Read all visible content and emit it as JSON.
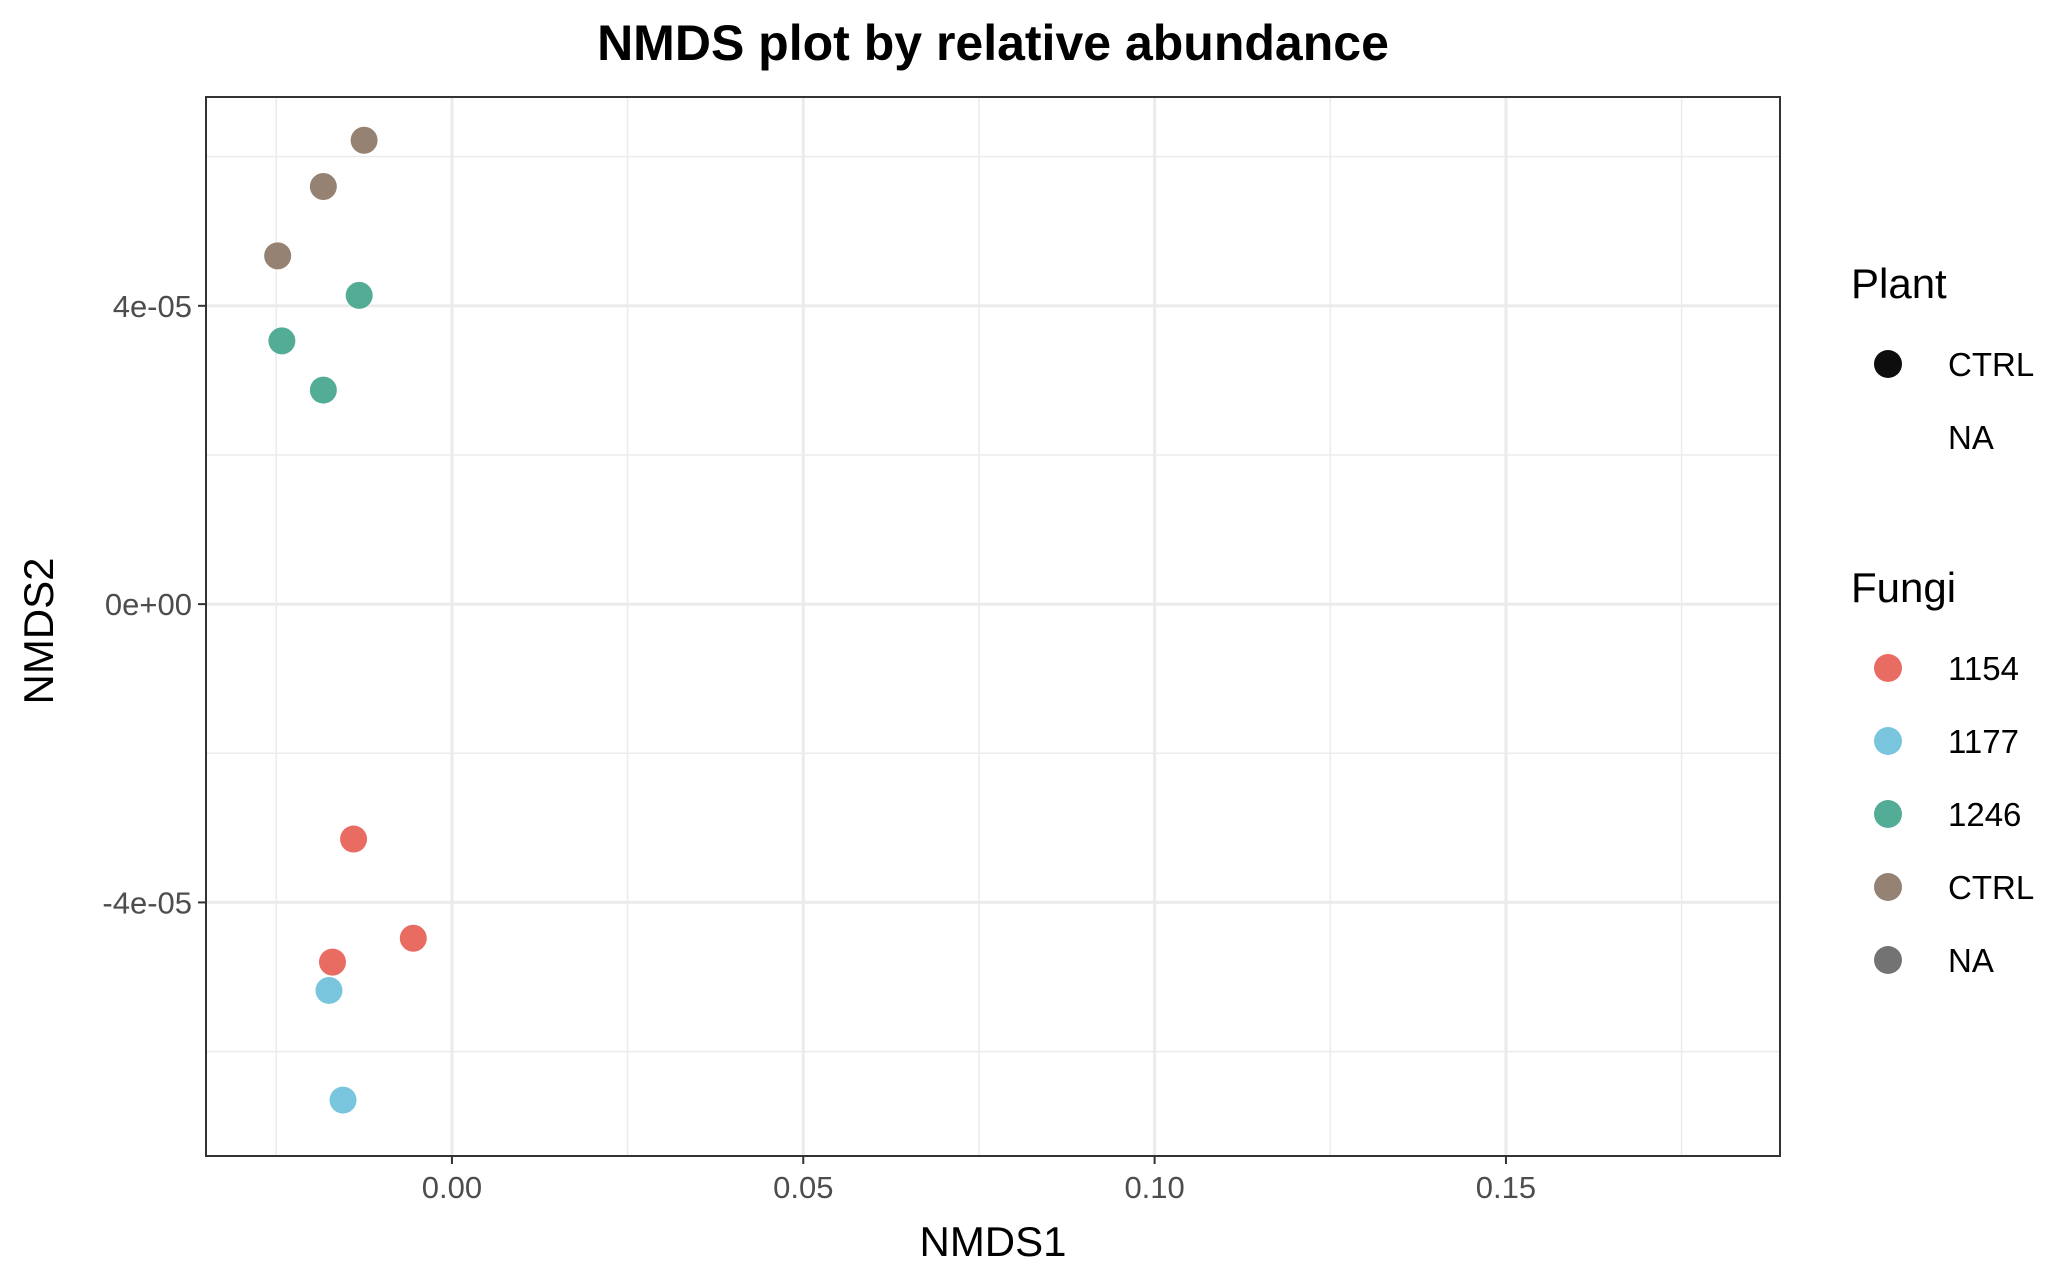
{
  "chart_data": {
    "type": "scatter",
    "title": "NMDS plot by relative abundance",
    "xlabel": "NMDS1",
    "ylabel": "NMDS2",
    "xlim": [
      -0.035,
      0.189
    ],
    "ylim": [
      -7.4e-05,
      6.8e-05
    ],
    "x_ticks": [
      {
        "value": 0.0,
        "label": "0.00"
      },
      {
        "value": 0.05,
        "label": "0.05"
      },
      {
        "value": 0.1,
        "label": "0.10"
      },
      {
        "value": 0.15,
        "label": "0.15"
      }
    ],
    "y_ticks": [
      {
        "value": -4e-05,
        "label": "-4e-05"
      },
      {
        "value": 0,
        "label": "0e+00"
      },
      {
        "value": 4e-05,
        "label": "4e-05"
      }
    ],
    "grid": true,
    "legend_position": "right",
    "series": [
      {
        "name": "1154",
        "color": "#E8645B",
        "points": [
          {
            "x": -0.014,
            "y": -3.15e-05
          },
          {
            "x": -0.0055,
            "y": -4.48e-05
          },
          {
            "x": -0.017,
            "y": -4.8e-05
          }
        ]
      },
      {
        "name": "1177",
        "color": "#72C2DB",
        "points": [
          {
            "x": -0.0175,
            "y": -5.18e-05
          },
          {
            "x": -0.0155,
            "y": -6.65e-05
          }
        ]
      },
      {
        "name": "1246",
        "color": "#4AA88F",
        "points": [
          {
            "x": -0.0132,
            "y": 4.14e-05
          },
          {
            "x": -0.0242,
            "y": 3.53e-05
          },
          {
            "x": -0.0183,
            "y": 2.87e-05
          }
        ]
      },
      {
        "name": "CTRL",
        "color": "#8F7B6B",
        "points": [
          {
            "x": -0.0125,
            "y": 6.22e-05
          },
          {
            "x": -0.0183,
            "y": 5.6e-05
          },
          {
            "x": -0.0248,
            "y": 4.67e-05
          }
        ]
      }
    ],
    "legends": [
      {
        "title": "Plant",
        "entries": [
          {
            "label": "CTRL",
            "color": "#000000",
            "shown": true
          },
          {
            "label": "NA",
            "color": "#000000",
            "shown": false
          }
        ]
      },
      {
        "title": "Fungi",
        "entries": [
          {
            "label": "1154",
            "color": "#E8645B",
            "shown": true
          },
          {
            "label": "1177",
            "color": "#72C2DB",
            "shown": true
          },
          {
            "label": "1246",
            "color": "#4AA88F",
            "shown": true
          },
          {
            "label": "CTRL",
            "color": "#8F7B6B",
            "shown": true
          },
          {
            "label": "NA",
            "color": "#6B6B6B",
            "shown": true
          }
        ]
      }
    ]
  }
}
